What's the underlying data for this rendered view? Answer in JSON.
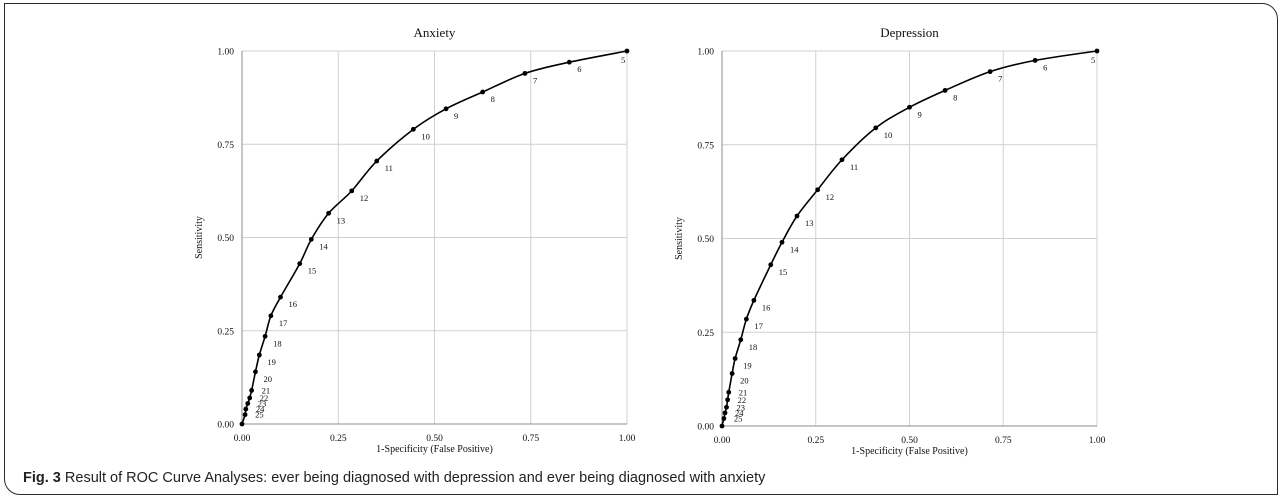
{
  "caption": {
    "figure_label": "Fig. 3",
    "text": "Result of ROC Curve Analyses: ever being diagnosed with depression and ever being diagnosed with anxiety"
  },
  "chart_data": [
    {
      "type": "line",
      "title": "Anxiety",
      "xlabel": "1-Specificity (False Positive)",
      "ylabel": "Sensitivity",
      "xlim": [
        0,
        1
      ],
      "ylim": [
        0,
        1
      ],
      "x_ticks": [
        "0.00",
        "0.25",
        "0.50",
        "0.75",
        "1.00"
      ],
      "y_ticks": [
        "0.00",
        "0.25",
        "0.50",
        "0.75",
        "1.00"
      ],
      "grid": true,
      "line_color": "#000000",
      "points": [
        {
          "label": "5",
          "x": 1.0,
          "y": 1.0
        },
        {
          "label": "6",
          "x": 0.85,
          "y": 0.97
        },
        {
          "label": "7",
          "x": 0.735,
          "y": 0.94
        },
        {
          "label": "8",
          "x": 0.625,
          "y": 0.89
        },
        {
          "label": "9",
          "x": 0.53,
          "y": 0.845
        },
        {
          "label": "10",
          "x": 0.445,
          "y": 0.79
        },
        {
          "label": "11",
          "x": 0.35,
          "y": 0.705
        },
        {
          "label": "12",
          "x": 0.285,
          "y": 0.625
        },
        {
          "label": "13",
          "x": 0.225,
          "y": 0.565
        },
        {
          "label": "14",
          "x": 0.18,
          "y": 0.495
        },
        {
          "label": "15",
          "x": 0.15,
          "y": 0.43
        },
        {
          "label": "16",
          "x": 0.1,
          "y": 0.34
        },
        {
          "label": "17",
          "x": 0.075,
          "y": 0.29
        },
        {
          "label": "18",
          "x": 0.06,
          "y": 0.235
        },
        {
          "label": "19",
          "x": 0.045,
          "y": 0.185
        },
        {
          "label": "20",
          "x": 0.035,
          "y": 0.14
        },
        {
          "label": "21",
          "x": 0.025,
          "y": 0.09
        },
        {
          "label": "22",
          "x": 0.02,
          "y": 0.07
        },
        {
          "label": "23",
          "x": 0.015,
          "y": 0.055
        },
        {
          "label": "24",
          "x": 0.01,
          "y": 0.04
        },
        {
          "label": "25",
          "x": 0.008,
          "y": 0.025
        },
        {
          "label": "",
          "x": 0.0,
          "y": 0.0
        }
      ]
    },
    {
      "type": "line",
      "title": "Depression",
      "xlabel": "1-Specificity (False Positive)",
      "ylabel": "Sensitivity",
      "xlim": [
        0,
        1
      ],
      "ylim": [
        0,
        1
      ],
      "x_ticks": [
        "0.00",
        "0.25",
        "0.50",
        "0.75",
        "1.00"
      ],
      "y_ticks": [
        "0.00",
        "0.25",
        "0.50",
        "0.75",
        "1.00"
      ],
      "grid": true,
      "line_color": "#000000",
      "points": [
        {
          "label": "5",
          "x": 1.0,
          "y": 1.0
        },
        {
          "label": "6",
          "x": 0.835,
          "y": 0.975
        },
        {
          "label": "7",
          "x": 0.715,
          "y": 0.945
        },
        {
          "label": "8",
          "x": 0.595,
          "y": 0.895
        },
        {
          "label": "9",
          "x": 0.5,
          "y": 0.85
        },
        {
          "label": "10",
          "x": 0.41,
          "y": 0.795
        },
        {
          "label": "11",
          "x": 0.32,
          "y": 0.71
        },
        {
          "label": "12",
          "x": 0.255,
          "y": 0.63
        },
        {
          "label": "13",
          "x": 0.2,
          "y": 0.56
        },
        {
          "label": "14",
          "x": 0.16,
          "y": 0.49
        },
        {
          "label": "15",
          "x": 0.13,
          "y": 0.43
        },
        {
          "label": "16",
          "x": 0.085,
          "y": 0.335
        },
        {
          "label": "17",
          "x": 0.065,
          "y": 0.285
        },
        {
          "label": "18",
          "x": 0.05,
          "y": 0.23
        },
        {
          "label": "19",
          "x": 0.035,
          "y": 0.18
        },
        {
          "label": "20",
          "x": 0.027,
          "y": 0.14
        },
        {
          "label": "21",
          "x": 0.018,
          "y": 0.09
        },
        {
          "label": "22",
          "x": 0.015,
          "y": 0.07
        },
        {
          "label": "23",
          "x": 0.012,
          "y": 0.05
        },
        {
          "label": "24",
          "x": 0.008,
          "y": 0.035
        },
        {
          "label": "25",
          "x": 0.005,
          "y": 0.02
        },
        {
          "label": "",
          "x": 0.0,
          "y": 0.0
        }
      ]
    }
  ]
}
